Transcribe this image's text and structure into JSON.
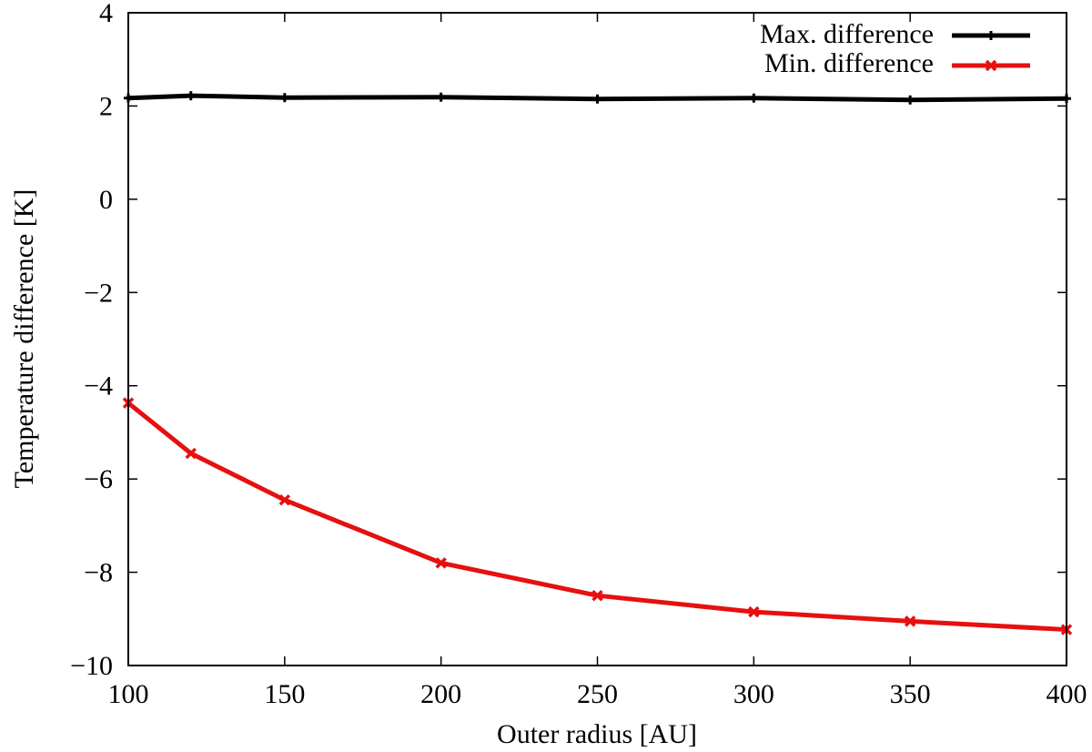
{
  "chart_data": {
    "type": "line",
    "title": "",
    "xlabel": "Outer radius [AU]",
    "ylabel": "Temperature difference [K]",
    "xlim": [
      100,
      400
    ],
    "ylim": [
      -10,
      4
    ],
    "x_ticks": [
      {
        "value": 100,
        "label": "100"
      },
      {
        "value": 150,
        "label": "150"
      },
      {
        "value": 200,
        "label": "200"
      },
      {
        "value": 250,
        "label": "250"
      },
      {
        "value": 300,
        "label": "300"
      },
      {
        "value": 350,
        "label": "350"
      },
      {
        "value": 400,
        "label": "400"
      }
    ],
    "y_ticks": [
      {
        "value": 4,
        "label": "4"
      },
      {
        "value": 2,
        "label": "2"
      },
      {
        "value": 0,
        "label": "0"
      },
      {
        "value": -2,
        "label": "−2"
      },
      {
        "value": -4,
        "label": "−4"
      },
      {
        "value": -6,
        "label": "−6"
      },
      {
        "value": -8,
        "label": "−8"
      },
      {
        "value": -10,
        "label": "−10"
      }
    ],
    "grid": false,
    "legend_position": "top-right",
    "series": [
      {
        "name": "Max. difference",
        "color": "#000000",
        "marker": "plus",
        "x": [
          100,
          120,
          150,
          200,
          250,
          300,
          350,
          400
        ],
        "y": [
          2.17,
          2.22,
          2.18,
          2.19,
          2.15,
          2.17,
          2.13,
          2.16
        ]
      },
      {
        "name": "Min. difference",
        "color": "#e61010",
        "marker": "cross",
        "x": [
          100,
          120,
          150,
          200,
          250,
          300,
          350,
          400
        ],
        "y": [
          -4.37,
          -5.45,
          -6.45,
          -7.8,
          -8.5,
          -8.85,
          -9.05,
          -9.23
        ]
      }
    ]
  }
}
